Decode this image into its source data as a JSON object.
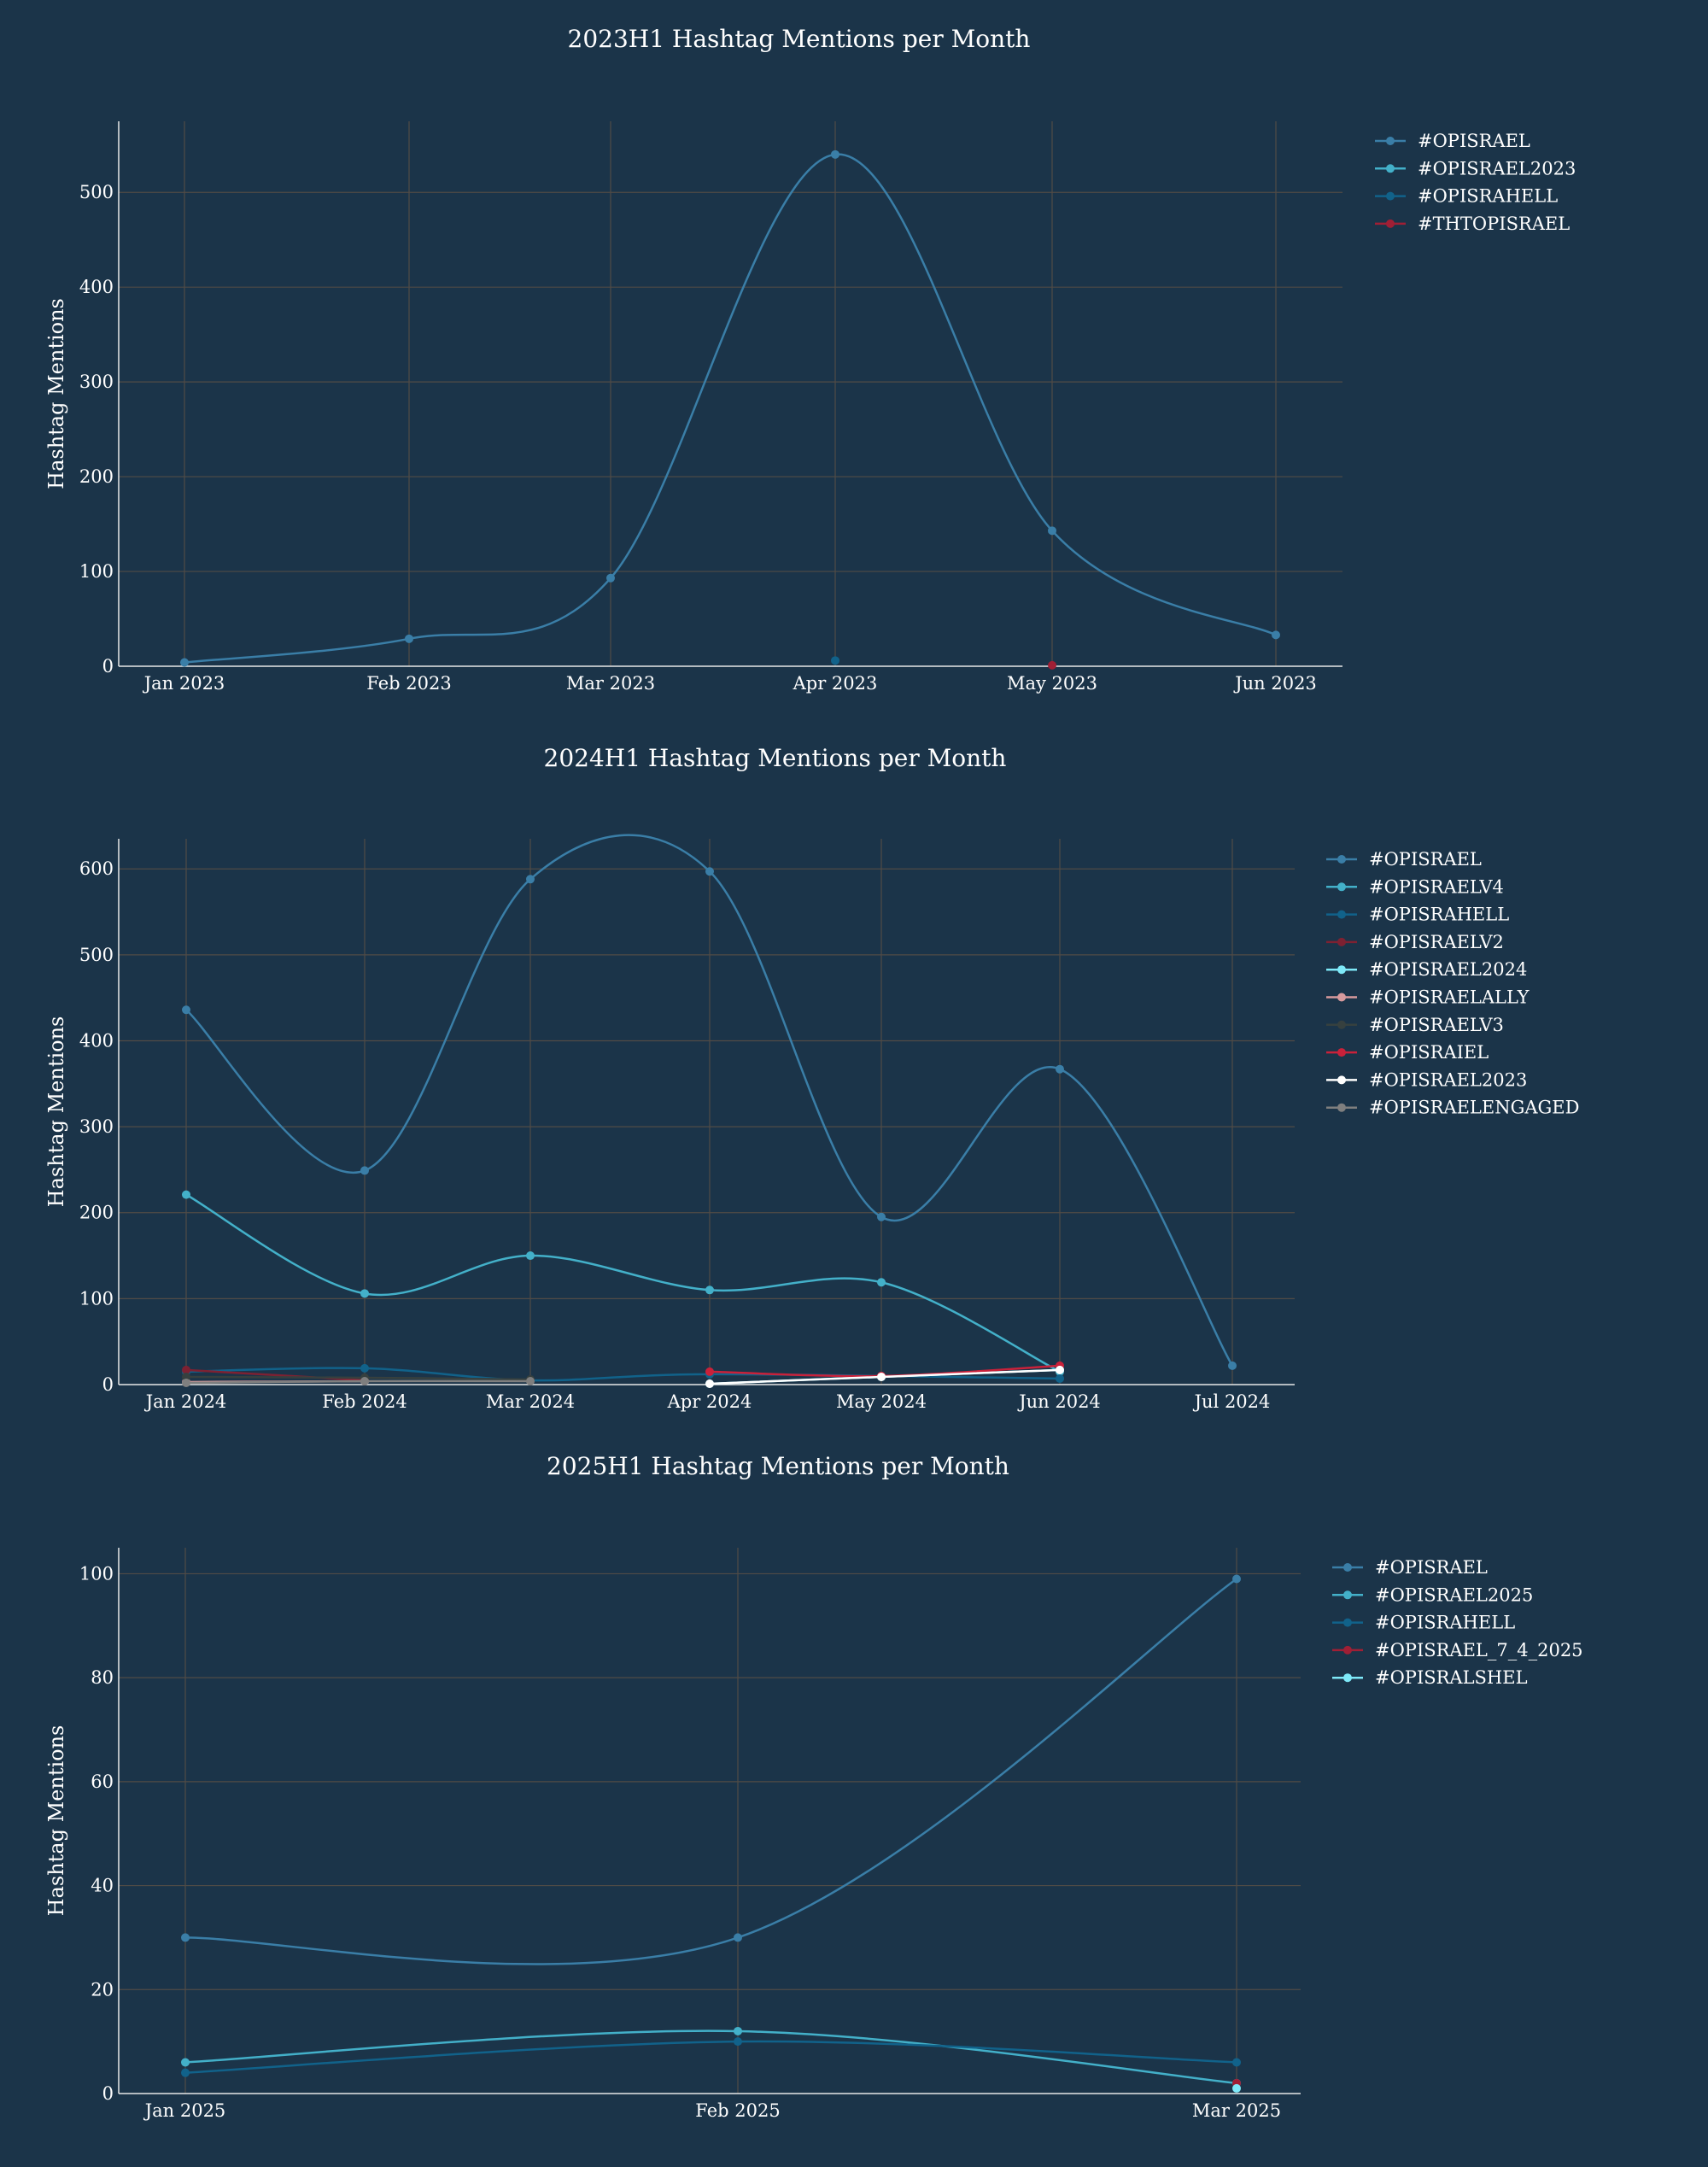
{
  "theme": {
    "background": "#1b3449",
    "grid": "#514b46",
    "axis": "#e8e8e8",
    "text": "#ffffff"
  },
  "chart_data": [
    {
      "type": "line",
      "title": "2023H1 Hashtag Mentions per Month",
      "ylabel": "Hashtag Mentions",
      "xlabel": "",
      "grid": true,
      "legend_position": "top-right",
      "x_ticks": [
        "Jan 2023",
        "Feb 2023",
        "Mar 2023",
        "Apr 2023",
        "May 2023",
        "Jun 2023"
      ],
      "y_ticks": [
        0,
        100,
        200,
        300,
        400,
        500
      ],
      "ylim": [
        0,
        575
      ],
      "series": [
        {
          "name": "#OPISRAEL",
          "color": "#3a7ea7",
          "width": 2.5,
          "x": [
            0,
            1,
            2,
            3,
            4,
            5
          ],
          "y": [
            4,
            29,
            93,
            540,
            143,
            33
          ]
        },
        {
          "name": "#OPISRAEL2023",
          "color": "#43b0c9",
          "width": 2.5,
          "x": [],
          "y": []
        },
        {
          "name": "#OPISRAHELL",
          "color": "#11628a",
          "width": 2.5,
          "x": [
            3
          ],
          "y": [
            6
          ]
        },
        {
          "name": "#THTOPISRAEL",
          "color": "#a01f35",
          "width": 2.5,
          "x": [
            4
          ],
          "y": [
            1
          ]
        }
      ]
    },
    {
      "type": "line",
      "title": "2024H1 Hashtag Mentions per Month",
      "ylabel": "Hashtag Mentions",
      "xlabel": "",
      "grid": true,
      "legend_position": "top-right",
      "x_ticks": [
        "Jan 2024",
        "Feb 2024",
        "Mar 2024",
        "Apr 2024",
        "May 2024",
        "Jun 2024",
        "Jul 2024"
      ],
      "y_ticks": [
        0,
        100,
        200,
        300,
        400,
        500,
        600
      ],
      "ylim": [
        0,
        635
      ],
      "series": [
        {
          "name": "#OPISRAEL",
          "color": "#3a7ea7",
          "width": 2.5,
          "x": [
            0,
            1,
            2,
            3,
            4,
            5,
            6
          ],
          "y": [
            436,
            249,
            588,
            597,
            195,
            367,
            22
          ]
        },
        {
          "name": "#OPISRAELV4",
          "color": "#43b0c9",
          "width": 2.5,
          "x": [
            0,
            1,
            2,
            3,
            4,
            5
          ],
          "y": [
            221,
            106,
            150,
            110,
            119,
            15
          ]
        },
        {
          "name": "#OPISRAHELL",
          "color": "#11628a",
          "width": 2.5,
          "x": [
            0,
            1,
            2,
            3,
            5
          ],
          "y": [
            15,
            19,
            5,
            12,
            7
          ]
        },
        {
          "name": "#OPISRAELV2",
          "color": "#7d2132",
          "width": 2.5,
          "x": [
            0,
            1
          ],
          "y": [
            17,
            5
          ]
        },
        {
          "name": "#OPISRAEL2024",
          "color": "#7ee9f8",
          "width": 2.5,
          "x": [
            3,
            4,
            5
          ],
          "y": [
            1,
            9,
            17
          ]
        },
        {
          "name": "#OPISRAELALLY",
          "color": "#d79a9d",
          "width": 2.5,
          "x": [
            0,
            1
          ],
          "y": [
            3,
            4
          ]
        },
        {
          "name": "#OPISRAELV3",
          "color": "#36403f",
          "width": 2.5,
          "x": [
            0,
            1,
            2
          ],
          "y": [
            9,
            8,
            6
          ]
        },
        {
          "name": "#OPISRAIEL",
          "color": "#c9213a",
          "width": 2.5,
          "x": [
            3,
            4,
            5
          ],
          "y": [
            15,
            10,
            22
          ]
        },
        {
          "name": "#OPISRAEL2023",
          "color": "#ffffff",
          "width": 2.5,
          "x": [
            3,
            4,
            5
          ],
          "y": [
            1,
            9,
            17
          ]
        },
        {
          "name": "#OPISRAELENGAGED",
          "color": "#7f7f7f",
          "width": 2.5,
          "x": [
            0,
            1,
            2
          ],
          "y": [
            2,
            4,
            4
          ]
        }
      ]
    },
    {
      "type": "line",
      "title": "2025H1 Hashtag Mentions per Month",
      "ylabel": "Hashtag Mentions",
      "xlabel": "",
      "grid": true,
      "legend_position": "top-right",
      "x_ticks": [
        "Jan 2025",
        "Feb 2025",
        "Mar 2025"
      ],
      "y_ticks": [
        0,
        20,
        40,
        60,
        80,
        100
      ],
      "ylim": [
        0,
        105
      ],
      "series": [
        {
          "name": "#OPISRAEL",
          "color": "#3a7ea7",
          "width": 2.5,
          "x": [
            0,
            1,
            2
          ],
          "y": [
            30,
            30,
            99
          ]
        },
        {
          "name": "#OPISRAEL2025",
          "color": "#43b0c9",
          "width": 2.5,
          "x": [
            0,
            1,
            2
          ],
          "y": [
            6,
            12,
            2
          ]
        },
        {
          "name": "#OPISRAHELL",
          "color": "#11628a",
          "width": 2.5,
          "x": [
            0,
            1,
            2
          ],
          "y": [
            4,
            10,
            6
          ]
        },
        {
          "name": "#OPISRAEL_7_4_2025",
          "color": "#a01f35",
          "width": 2.5,
          "x": [
            2
          ],
          "y": [
            2
          ]
        },
        {
          "name": "#OPISRALSHEL",
          "color": "#7ee9f8",
          "width": 2.5,
          "x": [
            2
          ],
          "y": [
            1
          ]
        }
      ]
    }
  ]
}
